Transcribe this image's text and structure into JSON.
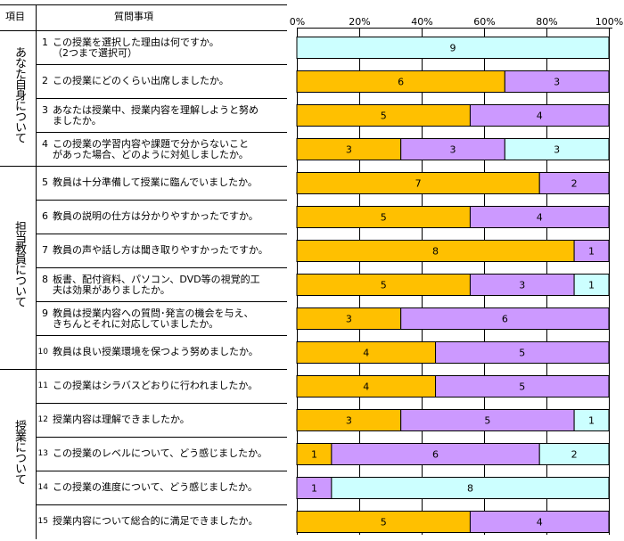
{
  "header": {
    "item_col": "項目",
    "question_col": "質問事項"
  },
  "sections": [
    {
      "label": "あなた自身について",
      "rows": [
        0,
        3
      ]
    },
    {
      "label": "担当教員について",
      "rows": [
        4,
        9
      ]
    },
    {
      "label": "授業について",
      "rows": [
        10,
        14
      ]
    }
  ],
  "questions": [
    {
      "no": "1",
      "text": "この授業を選択した理由は何ですか。\n（2つまで選択可）"
    },
    {
      "no": "2",
      "text": "この授業にどのくらい出席しましたか。"
    },
    {
      "no": "3",
      "text": "あなたは授業中、授業内容を理解しようと努め\nましたか。"
    },
    {
      "no": "4",
      "text": "この授業の学習内容や課題で分からないこと\nがあった場合、どのように対処しましたか。"
    },
    {
      "no": "5",
      "text": "教員は十分準備して授業に臨んでいましたか。"
    },
    {
      "no": "6",
      "text": "教員の説明の仕方は分かりやすかったですか。"
    },
    {
      "no": "7",
      "text": "教員の声や話し方は聞き取りやすかったですか。"
    },
    {
      "no": "8",
      "text": "板書、配付資料、パソコン、DVD等の視覚的工\n夫は効果がありましたか。"
    },
    {
      "no": "9",
      "text": "教員は授業内容への質問･発言の機会を与え、\nきちんとそれに対応していましたか。"
    },
    {
      "no": "10",
      "text": "教員は良い授業環境を保つよう努めましたか。"
    },
    {
      "no": "11",
      "text": "この授業はシラバスどおりに行われましたか。"
    },
    {
      "no": "12",
      "text": "授業内容は理解できましたか。"
    },
    {
      "no": "13",
      "text": "この授業のレベルについて、どう感じましたか。"
    },
    {
      "no": "14",
      "text": "この授業の進度について、どう感じましたか。"
    },
    {
      "no": "15",
      "text": "授業内容について総合的に満足できましたか。"
    }
  ],
  "colors": {
    "orange": "#ffc000",
    "purple": "#cc99ff",
    "cyan": "#ccffff",
    "border": "#000000",
    "grid": "#000000"
  },
  "chart_data": {
    "type": "bar",
    "orientation": "horizontal",
    "stacked": "percent",
    "axis": {
      "min": 0,
      "max": 100,
      "ticks": [
        "0%",
        "20%",
        "40%",
        "60%",
        "80%",
        "100%"
      ],
      "position": "top"
    },
    "categories": [
      "1",
      "2",
      "3",
      "4",
      "5",
      "6",
      "7",
      "8",
      "9",
      "10",
      "11",
      "12",
      "13",
      "14",
      "15"
    ],
    "rows": [
      [
        {
          "value": 9,
          "color": "cyan"
        }
      ],
      [
        {
          "value": 6,
          "color": "orange"
        },
        {
          "value": 3,
          "color": "purple"
        }
      ],
      [
        {
          "value": 5,
          "color": "orange"
        },
        {
          "value": 4,
          "color": "purple"
        }
      ],
      [
        {
          "value": 3,
          "color": "orange"
        },
        {
          "value": 3,
          "color": "purple"
        },
        {
          "value": 3,
          "color": "cyan"
        }
      ],
      [
        {
          "value": 7,
          "color": "orange"
        },
        {
          "value": 2,
          "color": "purple"
        }
      ],
      [
        {
          "value": 5,
          "color": "orange"
        },
        {
          "value": 4,
          "color": "purple"
        }
      ],
      [
        {
          "value": 8,
          "color": "orange"
        },
        {
          "value": 1,
          "color": "purple"
        }
      ],
      [
        {
          "value": 5,
          "color": "orange"
        },
        {
          "value": 3,
          "color": "purple"
        },
        {
          "value": 1,
          "color": "cyan"
        }
      ],
      [
        {
          "value": 3,
          "color": "orange"
        },
        {
          "value": 6,
          "color": "purple"
        }
      ],
      [
        {
          "value": 4,
          "color": "orange"
        },
        {
          "value": 5,
          "color": "purple"
        }
      ],
      [
        {
          "value": 4,
          "color": "orange"
        },
        {
          "value": 5,
          "color": "purple"
        }
      ],
      [
        {
          "value": 3,
          "color": "orange"
        },
        {
          "value": 5,
          "color": "purple"
        },
        {
          "value": 1,
          "color": "cyan"
        }
      ],
      [
        {
          "value": 1,
          "color": "orange"
        },
        {
          "value": 6,
          "color": "purple"
        },
        {
          "value": 2,
          "color": "cyan"
        }
      ],
      [
        {
          "value": 1,
          "color": "purple"
        },
        {
          "value": 8,
          "color": "cyan"
        }
      ],
      [
        {
          "value": 5,
          "color": "orange"
        },
        {
          "value": 4,
          "color": "purple"
        }
      ]
    ]
  }
}
